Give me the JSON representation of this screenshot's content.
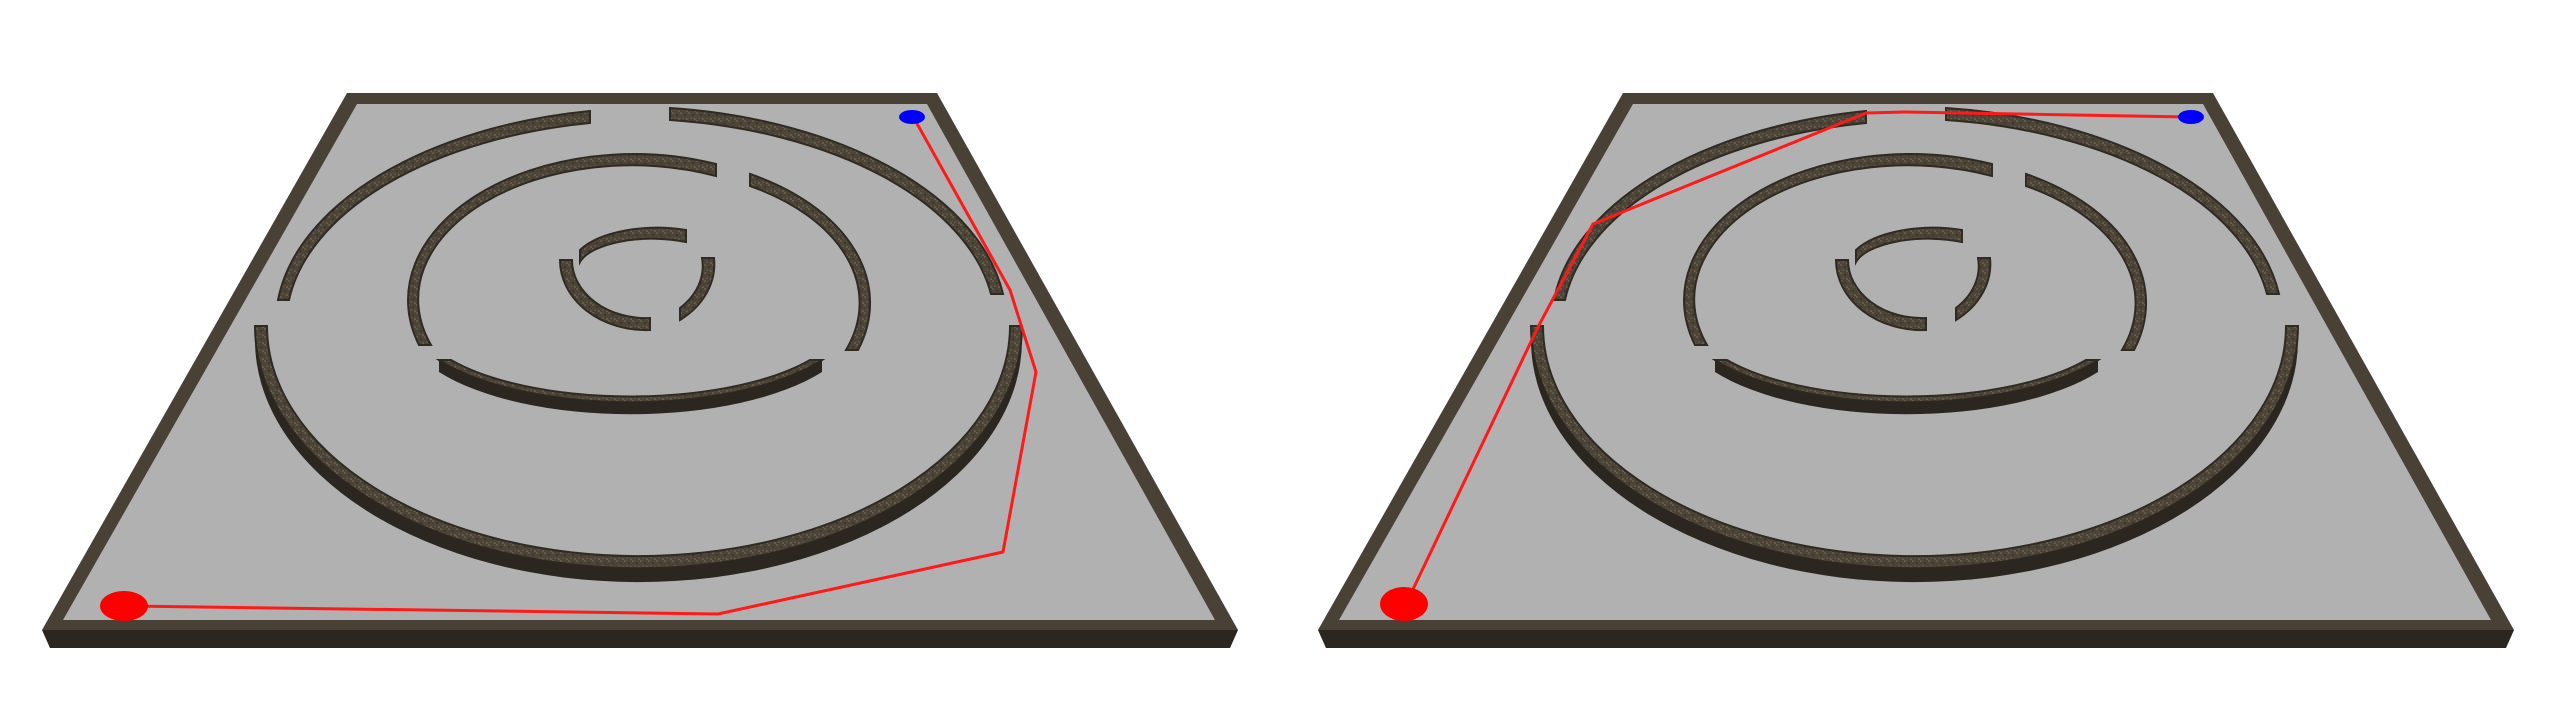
{
  "scene": {
    "panels": [
      {
        "id": "left-maze",
        "path_label": "",
        "start_marker": "start-marker",
        "goal_marker": "goal-marker"
      },
      {
        "id": "right-maze",
        "path_label": "",
        "start_marker": "start-marker",
        "goal_marker": "goal-marker"
      }
    ],
    "colors": {
      "floor": "#b1b1b1",
      "wall": "#4a4136",
      "path": "#ff1a1a",
      "start": "#ff0000",
      "goal": "#0000ff",
      "background": "#ffffff"
    },
    "icons": {
      "start": "start-marker-icon",
      "goal": "goal-marker-icon"
    }
  }
}
